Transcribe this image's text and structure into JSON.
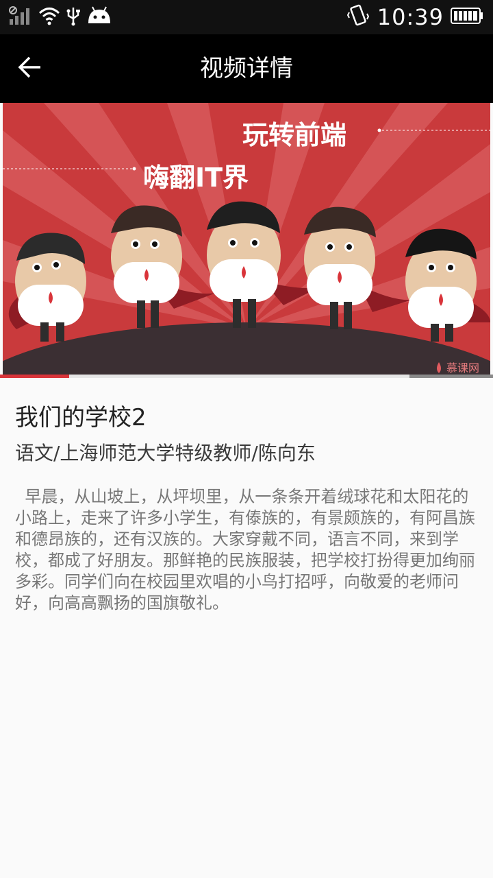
{
  "status_bar": {
    "time": "10:39",
    "icons": [
      "signal-off-icon",
      "signal-bars-icon",
      "wifi-icon",
      "usb-icon",
      "android-icon",
      "vibrate-icon",
      "battery-icon"
    ]
  },
  "app_bar": {
    "title": "视频详情",
    "back_icon": "arrow-left-icon"
  },
  "player": {
    "banner_line1": "玩转前端",
    "banner_line2": "嗨翻IT界",
    "watermark": "慕课网",
    "progress": 0.14,
    "buffer_start": 0.83,
    "colors": {
      "accent": "#d9343a",
      "banner_bg": "#c93a3c"
    }
  },
  "video": {
    "title": "我们的学校2",
    "subtitle": "语文/上海师范大学特级教师/陈向东",
    "description": "早晨，从山坡上，从坪坝里，从一条条开着绒球花和太阳花的小路上，走来了许多小学生，有傣族的，有景颇族的，有阿昌族和德昂族的，还有汉族的。大家穿戴不同，语言不同，来到学校，都成了好朋友。那鲜艳的民族服装，把学校打扮得更加绚丽多彩。同学们向在校园里欢唱的小鸟打招呼，向敬爱的老师问好，向高高飘扬的国旗敬礼。"
  }
}
